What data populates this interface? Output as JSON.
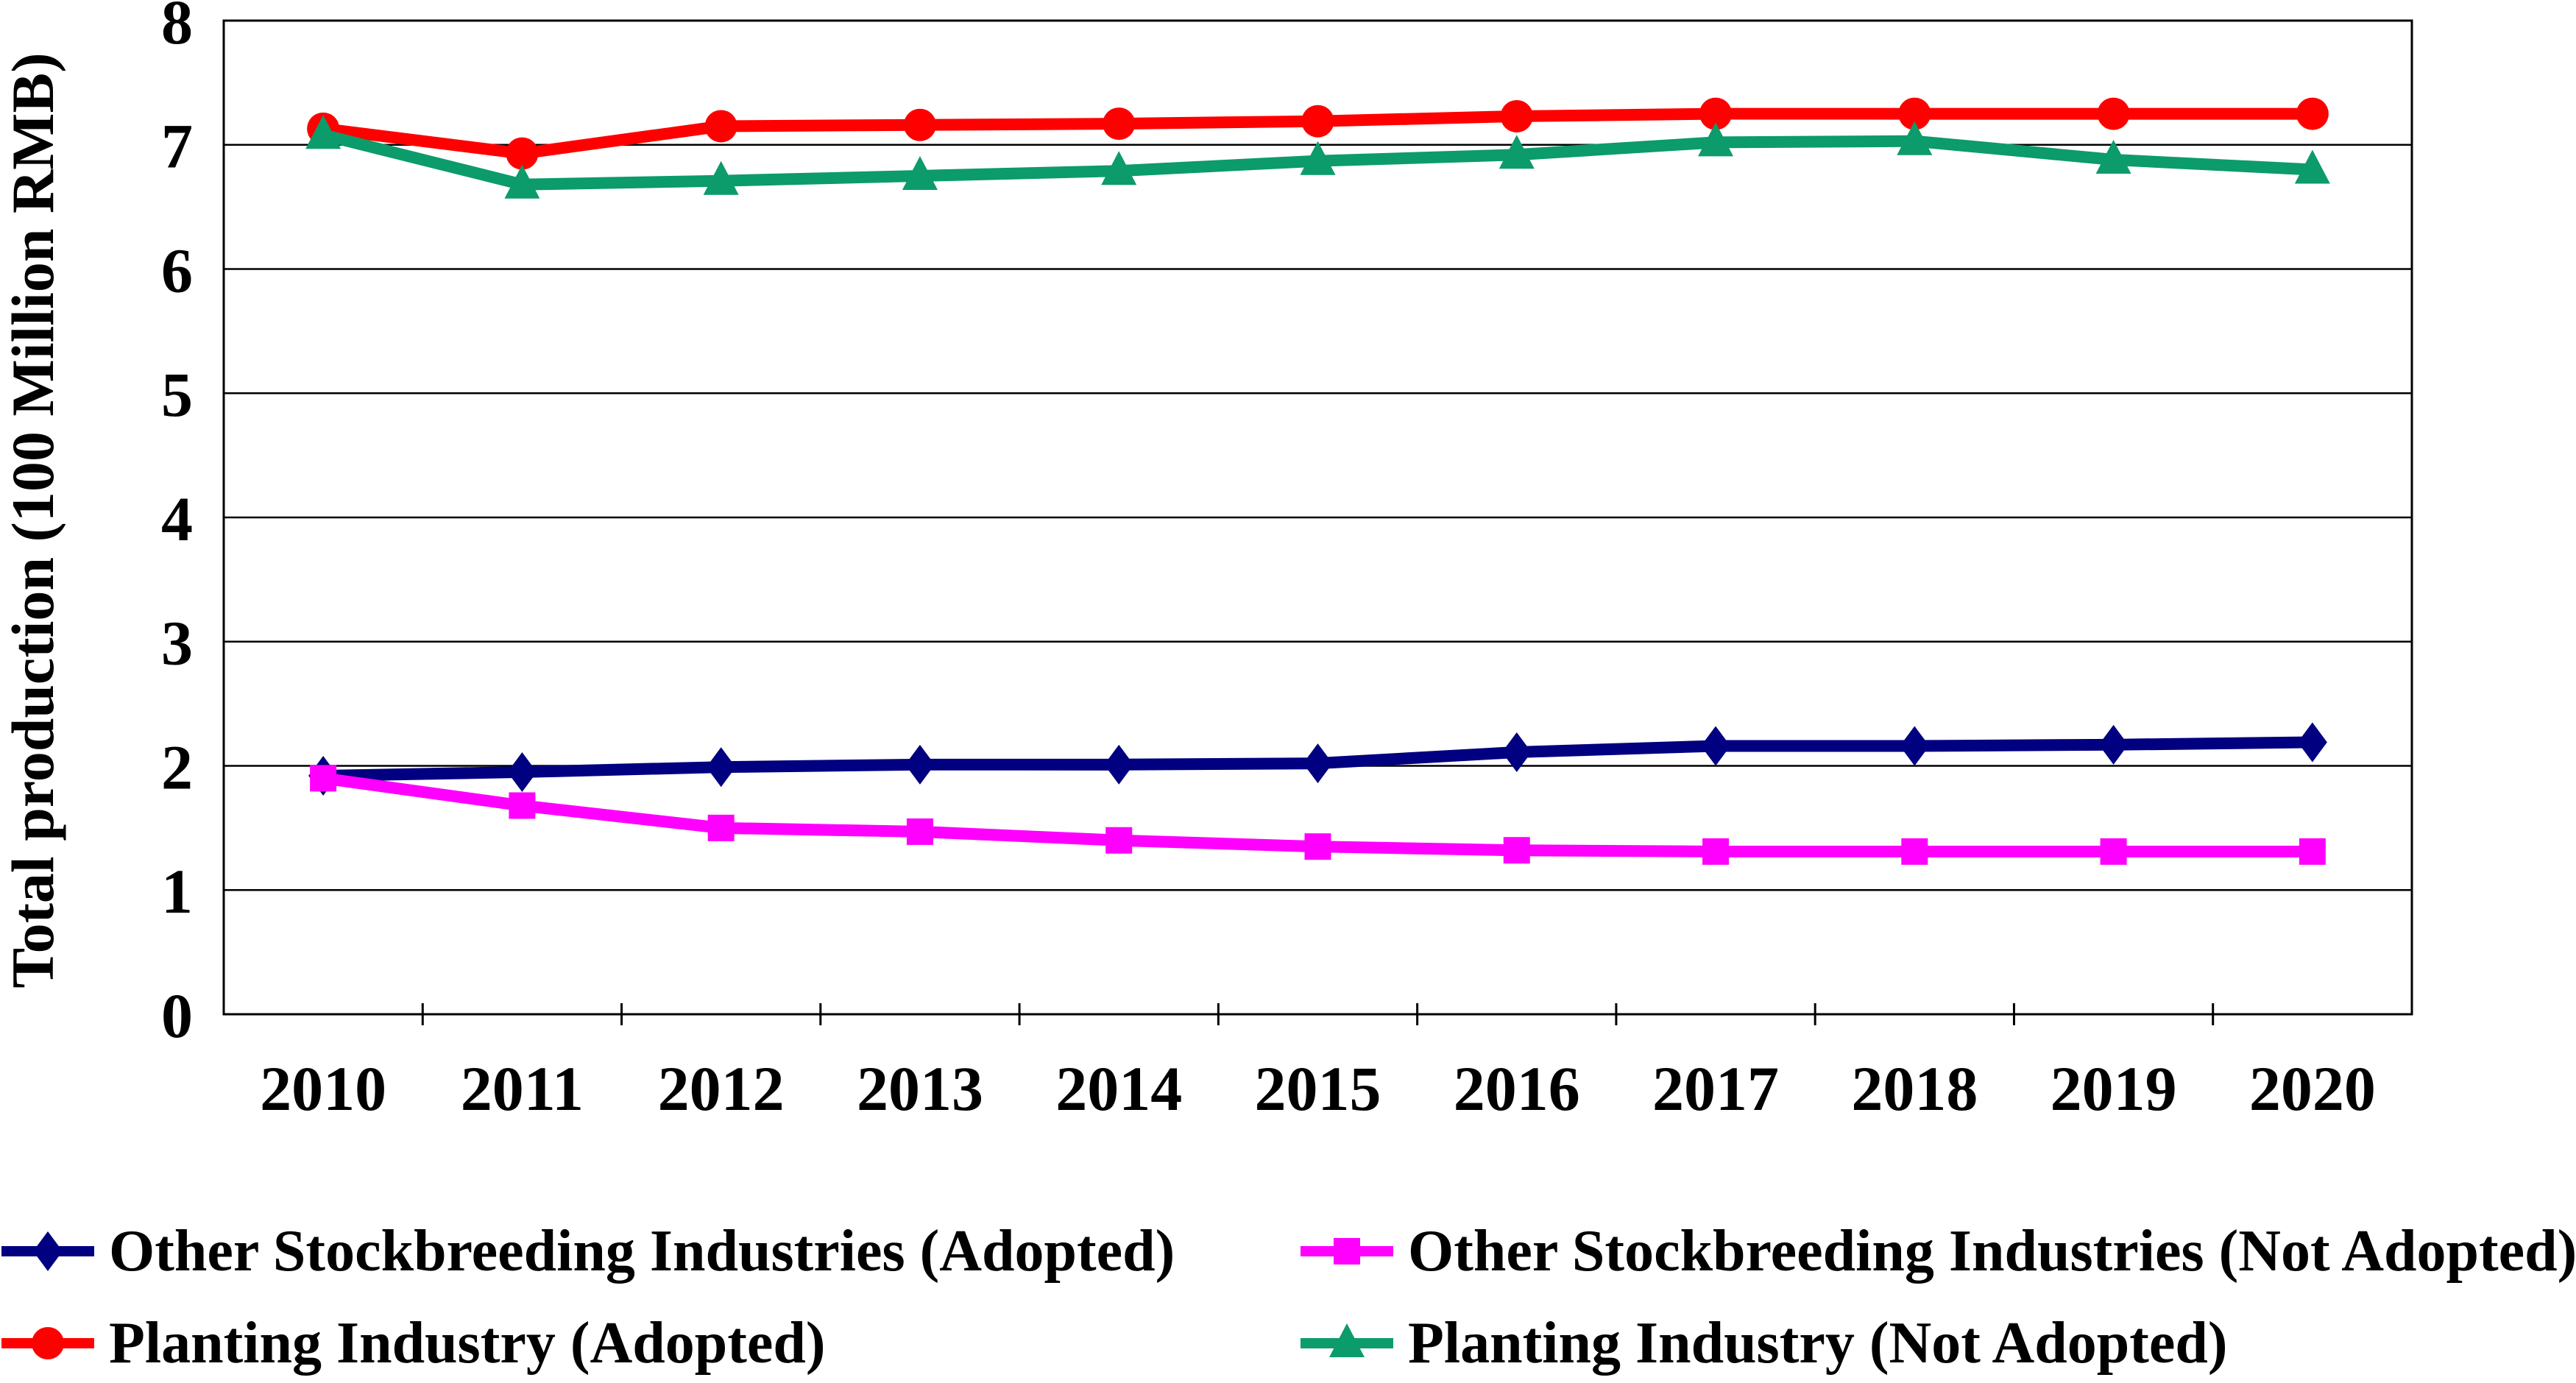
{
  "chart_data": {
    "type": "line",
    "title": "",
    "xlabel": "",
    "ylabel": "Total production (100 Million RMB)",
    "categories": [
      "2010",
      "2011",
      "2012",
      "2013",
      "2014",
      "2015",
      "2016",
      "2017",
      "2018",
      "2019",
      "2020"
    ],
    "ylim": [
      0,
      8
    ],
    "yticks": [
      "0",
      "1",
      "2",
      "3",
      "4",
      "5",
      "6",
      "7",
      "8"
    ],
    "grid": "horizontal gridlines at every integer, full plot border",
    "legend_position": "bottom, two columns",
    "series": [
      {
        "name": "Other Stockbreeding Industries (Adopted)",
        "marker": "diamond",
        "color": "#000080",
        "values": [
          1.92,
          1.95,
          1.99,
          2.01,
          2.01,
          2.02,
          2.11,
          2.16,
          2.16,
          2.17,
          2.19
        ]
      },
      {
        "name": "Other Stockbreeding Industries (Not Adopted)",
        "marker": "square",
        "color": "#FF00FF",
        "values": [
          1.9,
          1.68,
          1.5,
          1.47,
          1.4,
          1.35,
          1.32,
          1.31,
          1.31,
          1.31,
          1.31
        ]
      },
      {
        "name": "Planting Industry (Adopted)",
        "marker": "circle",
        "color": "#FF0000",
        "values": [
          7.13,
          6.93,
          7.15,
          7.16,
          7.17,
          7.19,
          7.23,
          7.25,
          7.25,
          7.25,
          7.25
        ]
      },
      {
        "name": "Planting Industry (Not Adopted)",
        "marker": "triangle",
        "color": "#0C9B6A",
        "values": [
          7.08,
          6.68,
          6.71,
          6.75,
          6.79,
          6.87,
          6.92,
          7.02,
          7.03,
          6.88,
          6.8
        ]
      }
    ]
  }
}
